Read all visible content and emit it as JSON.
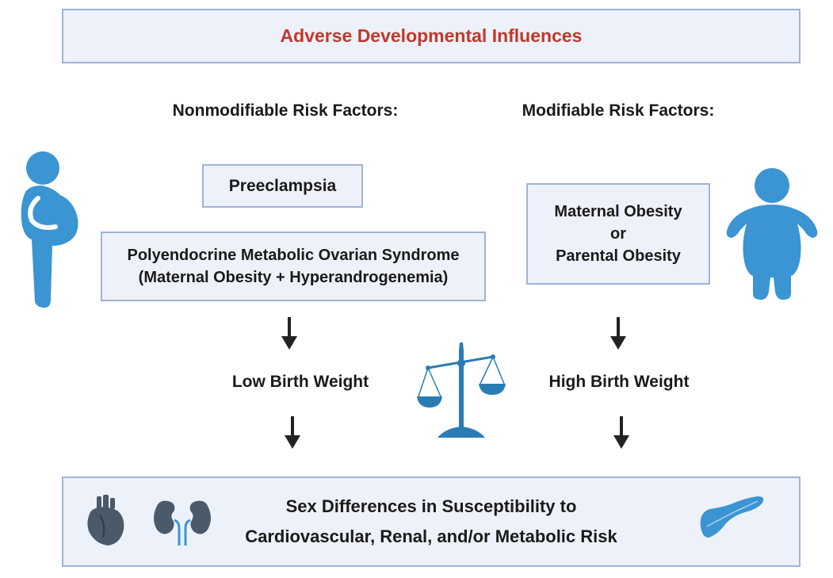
{
  "title": "Adverse Developmental Influences",
  "colors": {
    "title": "#c0392b",
    "box_fill": "#edf1fa",
    "box_border": "#9fb3d6",
    "figure_blue": "#3a95d2",
    "scale_blue": "#2a7cb5",
    "organ_dark": "#4a5a6a",
    "arrow": "#222222"
  },
  "left": {
    "heading": "Nonmodifiable Risk Factors:",
    "box1": "Preeclampsia",
    "box2_line1": "Polyendocrine Metabolic Ovarian Syndrome",
    "box2_line2": "(Maternal Obesity + Hyperandrogenemia)",
    "outcome": "Low Birth Weight",
    "icon": "pregnant-woman-icon"
  },
  "right": {
    "heading": "Modifiable Risk Factors:",
    "box_line1": "Maternal Obesity",
    "box_line2": "or",
    "box_line3": "Parental Obesity",
    "outcome": "High Birth Weight",
    "icon": "obese-person-icon"
  },
  "center_icon": "balance-scale-icon",
  "bottom": {
    "line1": "Sex Differences in Susceptibility to",
    "line2": "Cardiovascular, Renal, and/or Metabolic Risk",
    "icons": [
      "heart-icon",
      "kidneys-icon",
      "pancreas-icon"
    ]
  }
}
